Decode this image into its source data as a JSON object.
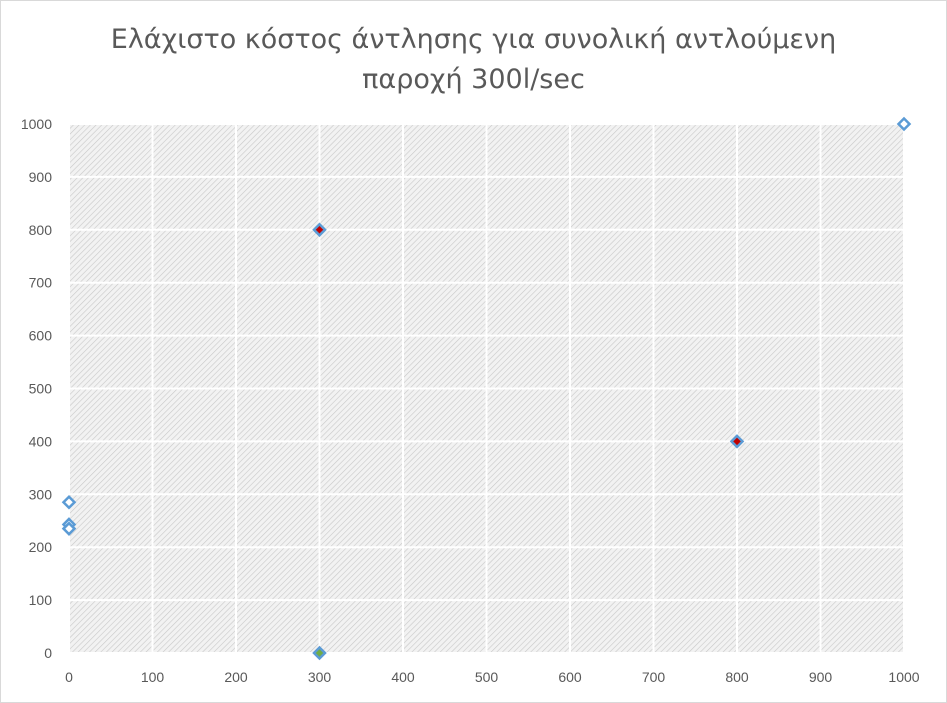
{
  "chart_data": {
    "type": "scatter",
    "title_lines": [
      "Ελάχιστο κόστος άντλησης για συνολική αντλούμενη",
      "παροχή 300l/sec"
    ],
    "xlim": [
      0,
      1000
    ],
    "ylim": [
      0,
      1000
    ],
    "x_ticks": [
      "0",
      "100",
      "200",
      "300",
      "400",
      "500",
      "600",
      "700",
      "800",
      "900",
      "1000"
    ],
    "y_ticks": [
      "0",
      "100",
      "200",
      "300",
      "400",
      "500",
      "600",
      "700",
      "800",
      "900",
      "1000"
    ],
    "grid": true,
    "legend": "none",
    "marker_style": "diamond",
    "marker_outline_color": "#5b9bd5",
    "plot_background_color": "#e0e0e0",
    "points": [
      {
        "x": 0,
        "y": 285,
        "fill": "#ffffff"
      },
      {
        "x": 0,
        "y": 243,
        "fill": "#ffffff"
      },
      {
        "x": 0,
        "y": 235,
        "fill": "#ffffff"
      },
      {
        "x": 300,
        "y": 800,
        "fill": "#c00000"
      },
      {
        "x": 800,
        "y": 400,
        "fill": "#c00000"
      },
      {
        "x": 300,
        "y": 0,
        "fill": "#70ad47"
      },
      {
        "x": 1000,
        "y": 1000,
        "fill": "#ffffff"
      }
    ]
  }
}
